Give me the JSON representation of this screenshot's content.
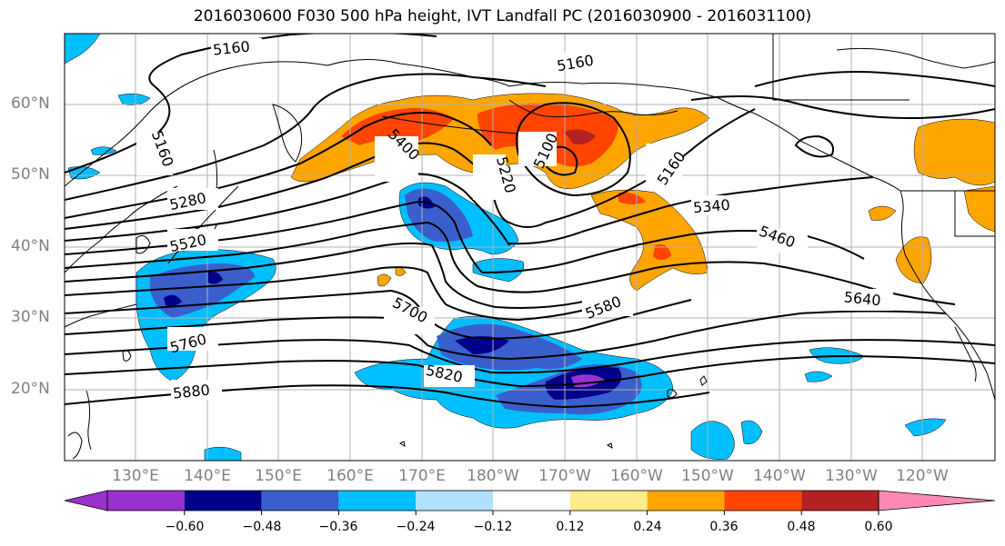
{
  "title": "2016030600 F030 500 hPa height, IVT Landfall PC (2016030900 - 2016031100)",
  "lat_labels": [
    "60°N",
    "50°N",
    "40°N",
    "30°N",
    "20°N"
  ],
  "lon_labels": [
    "130°E",
    "140°E",
    "150°E",
    "160°E",
    "170°E",
    "180°W",
    "170°W",
    "160°W",
    "150°W",
    "140°W",
    "130°W",
    "120°W"
  ],
  "contour_labels": [
    "5160",
    "5160",
    "5160",
    "5160",
    "5100",
    "5400",
    "5220",
    "5280",
    "5520",
    "5340",
    "5460",
    "5640",
    "5580",
    "5700",
    "5760",
    "5820",
    "5880"
  ],
  "colorbar": {
    "colors": [
      "#9932CC",
      "#00008B",
      "#3A5FCD",
      "#00BFFF",
      "#B0E2FF",
      "#FFFFFF",
      "#FFFFFF",
      "#FFEC8B",
      "#FFA500",
      "#FF4500",
      "#B22222",
      "#FF89B4"
    ],
    "tick_labels": [
      "−0.60",
      "−0.48",
      "−0.36",
      "−0.24",
      "−0.12",
      "0.12",
      "0.24",
      "0.36",
      "0.48",
      "0.60"
    ]
  },
  "legend_colors": {
    "negative_strong": "#00008B",
    "negative_mid": "#3A5FCD",
    "negative_weak": "#00BFFF",
    "positive_weak": "#FFA500",
    "positive_mid": "#FF4500",
    "positive_strong": "#B22222"
  }
}
